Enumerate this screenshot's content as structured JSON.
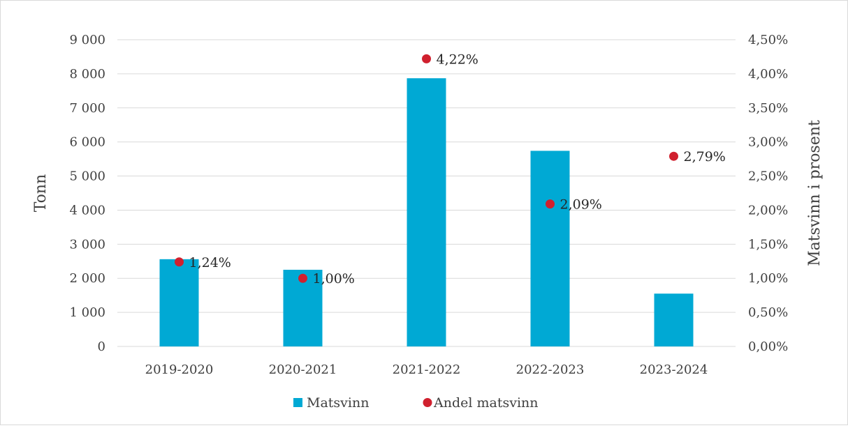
{
  "chart_data": {
    "type": "bar",
    "categories": [
      "2019-2020",
      "2020-2021",
      "2021-2022",
      "2022-2023",
      "2023-2024"
    ],
    "series": [
      {
        "name": "Matsvinn",
        "kind": "bar",
        "axis": "left",
        "color": "#00a9d4",
        "values": [
          2560,
          2250,
          7870,
          5740,
          1550
        ]
      },
      {
        "name": "Andel matsvinn",
        "kind": "scatter",
        "axis": "right",
        "color": "#d0202e",
        "values": [
          1.24,
          1.0,
          4.22,
          2.09,
          2.79
        ],
        "labels": [
          "1,24%",
          "1,00%",
          "4,22%",
          "2,09%",
          "2,79%"
        ]
      }
    ],
    "ylabel": "Tonn",
    "ylim": [
      0,
      9000
    ],
    "yticks": [
      0,
      1000,
      2000,
      3000,
      4000,
      5000,
      6000,
      7000,
      8000,
      9000
    ],
    "ytick_labels": [
      "0",
      "1 000",
      "2 000",
      "3 000",
      "4 000",
      "5 000",
      "6 000",
      "7 000",
      "8 000",
      "9 000"
    ],
    "y2label": "Matsvinn i prosent",
    "y2lim": [
      0,
      4.5
    ],
    "y2ticks": [
      0,
      0.5,
      1,
      1.5,
      2,
      2.5,
      3,
      3.5,
      4,
      4.5
    ],
    "y2tick_labels": [
      "0,00%",
      "0,50%",
      "1,00%",
      "1,50%",
      "2,00%",
      "2,50%",
      "3,00%",
      "3,50%",
      "4,00%",
      "4,50%"
    ],
    "grid": true,
    "legend_position": "bottom",
    "gridline_color": "#d9d9d9"
  }
}
